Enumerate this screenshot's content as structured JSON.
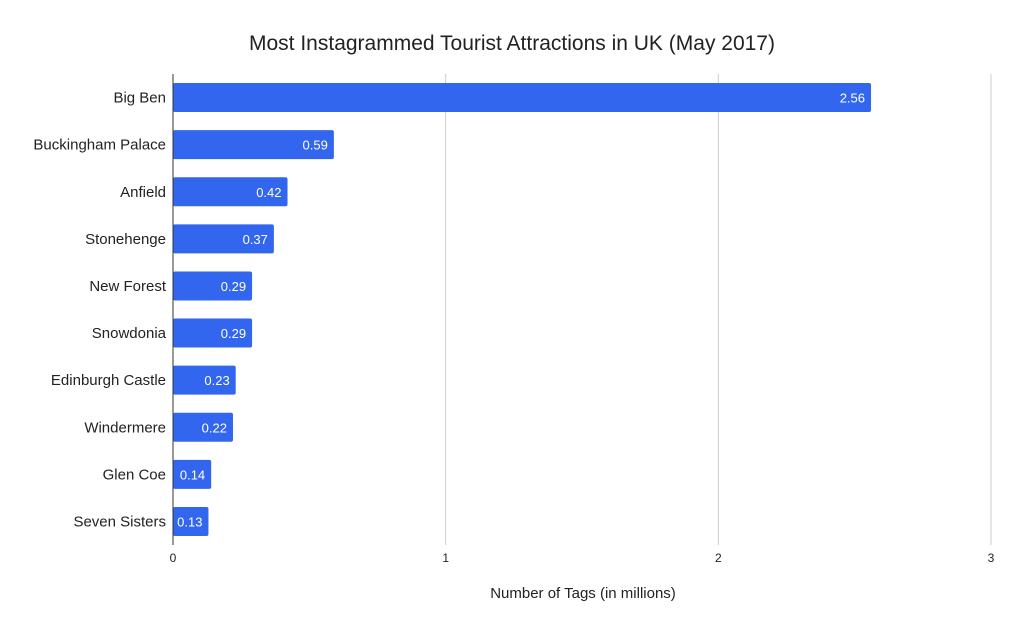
{
  "chart_data": {
    "type": "bar",
    "orientation": "horizontal",
    "title": "Most Instagrammed Tourist Attractions in UK (May 2017)",
    "xlabel": "Number of Tags (in millions)",
    "ylabel": "",
    "categories": [
      "Big Ben",
      "Buckingham Palace",
      "Anfield",
      "Stonehenge",
      "New Forest",
      "Snowdonia",
      "Edinburgh Castle",
      "Windermere",
      "Glen Coe",
      "Seven Sisters"
    ],
    "values": [
      2.56,
      0.59,
      0.42,
      0.37,
      0.29,
      0.29,
      0.23,
      0.22,
      0.14,
      0.13
    ],
    "data_labels": [
      "2.56",
      "0.59",
      "0.42",
      "0.37",
      "0.29",
      "0.29",
      "0.23",
      "0.22",
      "0.14",
      "0.13"
    ],
    "xlim": [
      0,
      3
    ],
    "xticks": [
      0,
      1,
      2,
      3
    ],
    "xtick_labels": [
      "0",
      "1",
      "2",
      "3"
    ],
    "grid": "vertical",
    "legend": "none",
    "bar_color": "#3366ee"
  }
}
